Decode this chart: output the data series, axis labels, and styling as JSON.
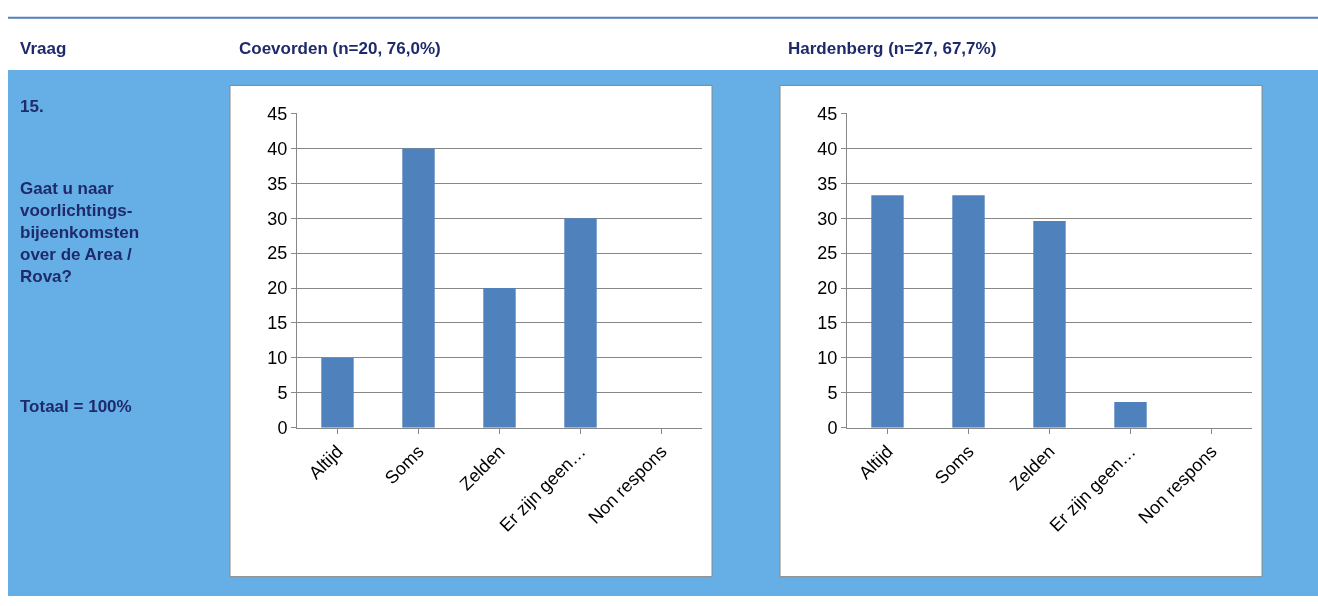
{
  "chart_data": [
    {
      "type": "bar",
      "title": "Coevorden (n=20, 76,0%)",
      "categories": [
        "Altijd",
        "Soms",
        "Zelden",
        "Er zijn geen…",
        "Non respons"
      ],
      "values": [
        10,
        40,
        20,
        30,
        0
      ],
      "color": "#4f81bd",
      "ylim": [
        0,
        45
      ],
      "yticks": [
        0,
        5,
        10,
        15,
        20,
        25,
        30,
        35,
        40,
        45
      ],
      "grid": "y",
      "annotations": [
        "Vraag",
        "15.",
        "Gaat u naar\nvoorlichtings-\nbijeenkomsten\nover de Area /\nRova?",
        "Totaal = 100%"
      ]
    },
    {
      "type": "bar",
      "title": "Hardenberg (n=27, 67,7%)",
      "categories": [
        "Altijd",
        "Soms",
        "Zelden",
        "Er zijn geen…",
        "Non respons"
      ],
      "values": [
        33.3,
        33.3,
        29.6,
        3.7,
        0
      ],
      "color": "#4f81bd",
      "ylim": [
        0,
        45
      ],
      "yticks": [
        0,
        5,
        10,
        15,
        20,
        25,
        30,
        35,
        40,
        45
      ],
      "grid": "y"
    }
  ]
}
